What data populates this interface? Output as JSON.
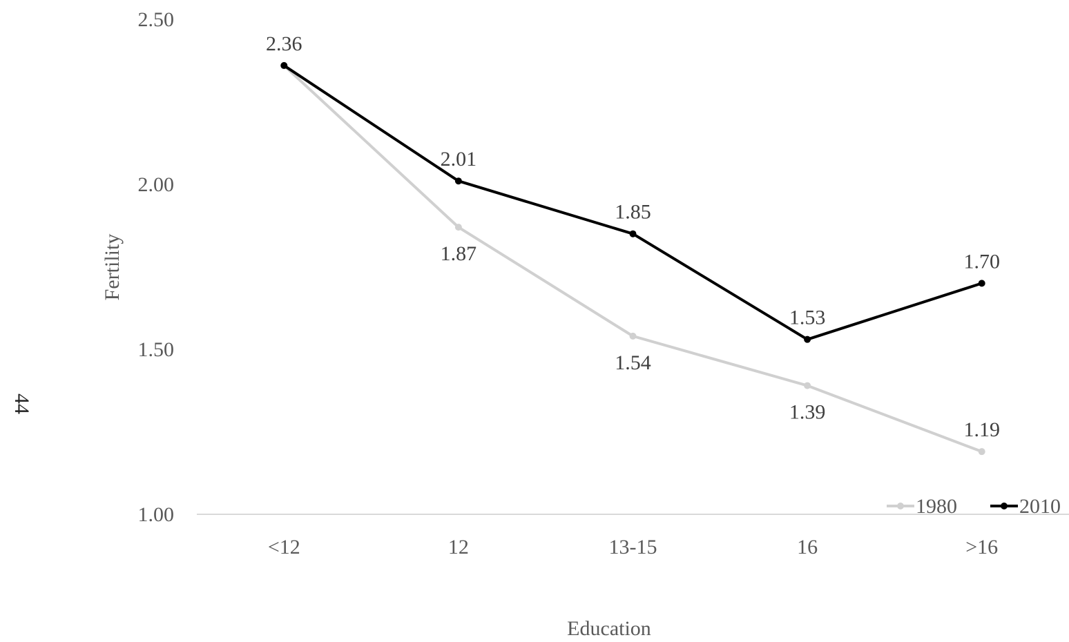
{
  "page": {
    "page_number": "44"
  },
  "chart_data": {
    "type": "line",
    "title": "",
    "xlabel": "Education",
    "ylabel": "Fertility",
    "categories": [
      "<12",
      "12",
      "13-15",
      "16",
      ">16"
    ],
    "ylim": [
      1.0,
      2.5
    ],
    "yticks": [
      "1.00",
      "1.50",
      "2.00",
      "2.50"
    ],
    "grid": false,
    "legend_position": "bottom-right",
    "series": [
      {
        "name": "1980",
        "color": "#d0d0d0",
        "values": [
          2.36,
          1.87,
          1.54,
          1.39,
          1.19
        ],
        "labels": [
          "",
          "1.87",
          "1.54",
          "1.39",
          "1.19"
        ],
        "label_positions": [
          "none",
          "below",
          "below",
          "below",
          "above"
        ]
      },
      {
        "name": "2010",
        "color": "#000000",
        "values": [
          2.36,
          2.01,
          1.85,
          1.53,
          1.7
        ],
        "labels": [
          "2.36",
          "2.01",
          "1.85",
          "1.53",
          "1.70"
        ],
        "label_positions": [
          "above",
          "above",
          "above",
          "above",
          "above"
        ]
      }
    ]
  }
}
